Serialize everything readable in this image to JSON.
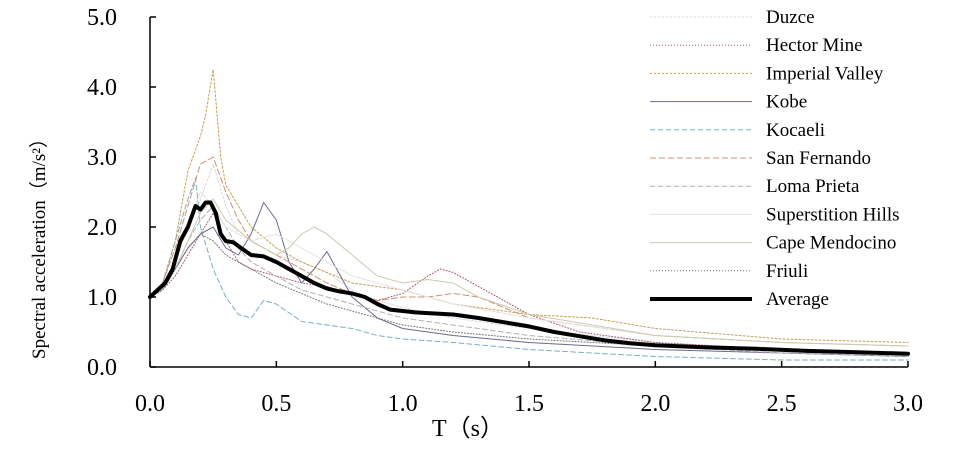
{
  "chart_data": {
    "type": "line",
    "xlabel": "T（s）",
    "ylabel": "Spectral acceleration（m/s²）",
    "xlim": [
      0,
      3.0
    ],
    "ylim": [
      0,
      5.0
    ],
    "x_ticks": [
      "0.0",
      "0.5",
      "1.0",
      "1.5",
      "2.0",
      "2.5",
      "3.0"
    ],
    "y_ticks": [
      "0.0",
      "1.0",
      "2.0",
      "3.0",
      "4.0",
      "5.0"
    ],
    "grid": false,
    "legend_position": "top-right",
    "series": [
      {
        "name": "Duzce",
        "color": "#d8d8d8",
        "dash": "2,2",
        "width": 1,
        "x": [
          0,
          0.05,
          0.1,
          0.15,
          0.2,
          0.25,
          0.3,
          0.35,
          0.4,
          0.45,
          0.5,
          0.6,
          0.7,
          0.8,
          0.9,
          1.0,
          1.2,
          1.5,
          2.0,
          2.5,
          3.0
        ],
        "y": [
          1.0,
          1.1,
          1.5,
          2.0,
          2.4,
          2.9,
          2.3,
          1.9,
          1.8,
          1.7,
          1.6,
          1.5,
          1.35,
          1.1,
          0.95,
          0.85,
          0.7,
          0.55,
          0.35,
          0.25,
          0.2
        ]
      },
      {
        "name": "Hector Mine",
        "color": "#b0506a",
        "dash": "1,2",
        "width": 1,
        "x": [
          0,
          0.05,
          0.1,
          0.15,
          0.2,
          0.25,
          0.3,
          0.35,
          0.4,
          0.5,
          0.6,
          0.7,
          0.8,
          0.9,
          1.0,
          1.1,
          1.15,
          1.2,
          1.3,
          1.5,
          1.7,
          2.0,
          2.5,
          3.0
        ],
        "y": [
          1.0,
          1.1,
          1.3,
          1.6,
          1.9,
          2.2,
          1.8,
          1.5,
          1.4,
          1.3,
          1.2,
          1.15,
          1.05,
          0.95,
          1.05,
          1.3,
          1.4,
          1.35,
          1.15,
          0.75,
          0.5,
          0.35,
          0.25,
          0.2
        ]
      },
      {
        "name": "Imperial Valley",
        "color": "#c8a050",
        "dash": "2,2",
        "width": 1,
        "x": [
          0,
          0.05,
          0.1,
          0.15,
          0.2,
          0.22,
          0.25,
          0.28,
          0.3,
          0.35,
          0.4,
          0.5,
          0.6,
          0.7,
          0.8,
          1.0,
          1.2,
          1.5,
          1.75,
          2.0,
          2.5,
          3.0
        ],
        "y": [
          1.0,
          1.2,
          1.8,
          2.8,
          3.3,
          3.6,
          4.25,
          3.0,
          2.6,
          2.3,
          2.0,
          1.7,
          1.5,
          1.35,
          1.2,
          1.1,
          0.9,
          0.75,
          0.7,
          0.55,
          0.4,
          0.35
        ]
      },
      {
        "name": "Kobe",
        "color": "#6a6a90",
        "dash": "",
        "width": 1,
        "x": [
          0,
          0.05,
          0.1,
          0.15,
          0.2,
          0.25,
          0.3,
          0.35,
          0.4,
          0.45,
          0.5,
          0.55,
          0.6,
          0.65,
          0.7,
          0.8,
          0.9,
          1.0,
          1.2,
          1.5,
          2.0,
          2.5,
          3.0
        ],
        "y": [
          1.0,
          1.1,
          1.4,
          1.7,
          1.9,
          2.0,
          1.7,
          1.6,
          1.9,
          2.35,
          2.1,
          1.5,
          1.2,
          1.4,
          1.65,
          1.0,
          0.7,
          0.55,
          0.45,
          0.35,
          0.25,
          0.2,
          0.15
        ]
      },
      {
        "name": "Kocaeli",
        "color": "#7ab0c0",
        "dash": "5,3",
        "width": 1,
        "x": [
          0,
          0.05,
          0.1,
          0.15,
          0.18,
          0.2,
          0.25,
          0.3,
          0.35,
          0.4,
          0.45,
          0.5,
          0.6,
          0.7,
          0.8,
          0.9,
          1.0,
          1.2,
          1.5,
          2.0,
          2.5,
          3.0
        ],
        "y": [
          1.0,
          1.2,
          1.8,
          2.4,
          2.7,
          2.0,
          1.4,
          1.0,
          0.75,
          0.7,
          0.95,
          0.9,
          0.65,
          0.6,
          0.55,
          0.45,
          0.4,
          0.35,
          0.25,
          0.15,
          0.1,
          0.1
        ]
      },
      {
        "name": "San Fernando",
        "color": "#d09070",
        "dash": "6,3",
        "width": 1,
        "x": [
          0,
          0.05,
          0.1,
          0.15,
          0.2,
          0.25,
          0.3,
          0.35,
          0.4,
          0.5,
          0.6,
          0.7,
          0.8,
          0.9,
          1.0,
          1.1,
          1.2,
          1.3,
          1.5,
          2.0,
          2.5,
          3.0
        ],
        "y": [
          1.0,
          1.2,
          1.7,
          2.3,
          2.9,
          3.0,
          2.5,
          2.1,
          1.8,
          1.6,
          1.4,
          1.2,
          1.05,
          0.95,
          1.0,
          1.0,
          1.05,
          1.0,
          0.7,
          0.45,
          0.35,
          0.3
        ]
      },
      {
        "name": "Loma Prieta",
        "color": "#b0b0b0",
        "dash": "5,3",
        "width": 1,
        "x": [
          0,
          0.05,
          0.1,
          0.15,
          0.2,
          0.25,
          0.3,
          0.35,
          0.4,
          0.5,
          0.6,
          0.7,
          0.8,
          0.9,
          1.0,
          1.2,
          1.5,
          2.0,
          2.5,
          3.0
        ],
        "y": [
          1.0,
          1.1,
          1.4,
          1.8,
          2.1,
          2.3,
          2.0,
          1.7,
          1.5,
          1.3,
          1.1,
          1.0,
          0.9,
          0.8,
          0.7,
          0.6,
          0.45,
          0.3,
          0.2,
          0.15
        ]
      },
      {
        "name": "Superstition Hills",
        "color": "#e2e2e2",
        "dash": "",
        "width": 1,
        "x": [
          0,
          0.05,
          0.1,
          0.15,
          0.2,
          0.25,
          0.3,
          0.4,
          0.5,
          0.6,
          0.7,
          0.8,
          1.0,
          1.2,
          1.5,
          2.0,
          2.5,
          3.0
        ],
        "y": [
          1.0,
          1.1,
          1.5,
          2.0,
          2.5,
          2.3,
          2.0,
          1.8,
          1.9,
          1.7,
          1.5,
          1.3,
          1.1,
          0.9,
          0.7,
          0.45,
          0.35,
          0.3
        ]
      },
      {
        "name": "Cape Mendocino",
        "color": "#cccab0",
        "dash": "",
        "width": 1,
        "x": [
          0,
          0.05,
          0.1,
          0.15,
          0.2,
          0.25,
          0.3,
          0.4,
          0.5,
          0.55,
          0.6,
          0.65,
          0.7,
          0.8,
          0.9,
          1.0,
          1.1,
          1.2,
          1.3,
          1.5,
          2.0,
          2.5,
          3.0
        ],
        "y": [
          1.0,
          1.1,
          1.4,
          1.8,
          2.2,
          2.4,
          2.1,
          1.8,
          1.6,
          1.7,
          1.9,
          2.0,
          1.9,
          1.6,
          1.3,
          1.2,
          1.25,
          1.2,
          1.0,
          0.75,
          0.45,
          0.35,
          0.3
        ]
      },
      {
        "name": "Friuli",
        "color": "#707070",
        "dash": "1,2",
        "width": 1,
        "x": [
          0,
          0.05,
          0.1,
          0.15,
          0.2,
          0.25,
          0.3,
          0.35,
          0.4,
          0.5,
          0.6,
          0.7,
          0.8,
          0.9,
          1.0,
          1.2,
          1.5,
          2.0,
          2.5,
          3.0
        ],
        "y": [
          1.0,
          1.1,
          1.4,
          1.7,
          1.9,
          1.8,
          1.6,
          1.5,
          1.4,
          1.2,
          1.05,
          0.9,
          0.8,
          0.7,
          0.6,
          0.5,
          0.4,
          0.3,
          0.25,
          0.2
        ]
      },
      {
        "name": "Average",
        "color": "#000000",
        "dash": "",
        "width": 4,
        "x": [
          0,
          0.03,
          0.06,
          0.09,
          0.12,
          0.15,
          0.18,
          0.2,
          0.22,
          0.24,
          0.26,
          0.28,
          0.3,
          0.33,
          0.36,
          0.4,
          0.45,
          0.5,
          0.55,
          0.6,
          0.65,
          0.7,
          0.75,
          0.8,
          0.85,
          0.9,
          0.95,
          1.0,
          1.05,
          1.1,
          1.2,
          1.3,
          1.4,
          1.5,
          1.6,
          1.7,
          1.8,
          1.9,
          2.0,
          2.2,
          2.4,
          2.6,
          2.8,
          3.0
        ],
        "y": [
          1.0,
          1.1,
          1.2,
          1.4,
          1.8,
          2.0,
          2.3,
          2.25,
          2.35,
          2.35,
          2.2,
          1.9,
          1.8,
          1.78,
          1.7,
          1.6,
          1.58,
          1.5,
          1.4,
          1.3,
          1.2,
          1.12,
          1.08,
          1.05,
          1.0,
          0.9,
          0.82,
          0.8,
          0.78,
          0.77,
          0.75,
          0.7,
          0.64,
          0.58,
          0.5,
          0.44,
          0.38,
          0.34,
          0.31,
          0.28,
          0.26,
          0.23,
          0.21,
          0.19
        ]
      }
    ]
  }
}
